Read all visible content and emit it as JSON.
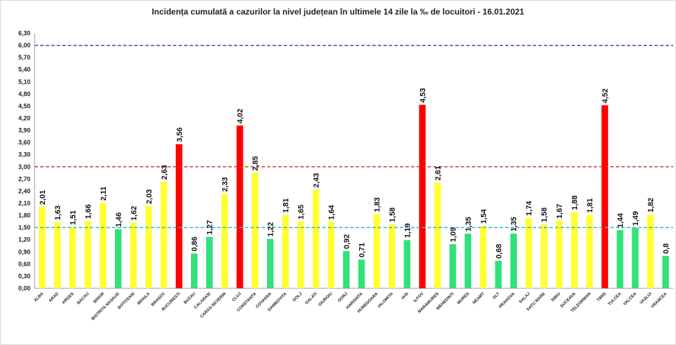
{
  "chart_data": {
    "type": "bar",
    "title": "Incidența cumulată a cazurilor la nivel județean în ultimele 14 zile   la ‰ de locuitori  - 16.01.2021",
    "xlabel": "",
    "ylabel": "",
    "ylim": [
      0,
      6.3
    ],
    "y_ticks": [
      "0,00",
      "0,30",
      "0,60",
      "0,90",
      "1,20",
      "1,50",
      "1,80",
      "2,10",
      "2,40",
      "2,70",
      "3,00",
      "3,30",
      "3,60",
      "3,90",
      "4,20",
      "4,50",
      "4,80",
      "5,10",
      "5,40",
      "5,70",
      "6,00",
      "6,30"
    ],
    "grid": false,
    "legend": "none",
    "thresholds": [
      {
        "value": 6.0,
        "color": "#7030a0"
      },
      {
        "value": 3.0,
        "color": "#e03131"
      },
      {
        "value": 1.5,
        "color": "#2fb5e0"
      }
    ],
    "categories": [
      "ALBA",
      "ARAD",
      "ARGES",
      "BACAU",
      "BIHOR",
      "BISTRITA NASAUD",
      "BOTOSANI",
      "BRAILA",
      "BRASOV",
      "BUCURESTI",
      "BUZAU",
      "CALARASI",
      "CARAS-SEVERIN",
      "CLUJ",
      "CONSTANTA",
      "COVASNA",
      "DAMBOVITA",
      "DOLJ",
      "GALATI",
      "GIURGIU",
      "GORJ",
      "HARGHITA",
      "HUNEDOARA",
      "IALOMITA",
      "IASI",
      "ILFOV",
      "MARAMURES",
      "MEHEDINTI",
      "MURES",
      "NEAMT",
      "OLT",
      "PRAHOVA",
      "SALAJ",
      "SATU MARE",
      "SIBIU",
      "SUCEAVA",
      "TELEORMAN",
      "TIMIS",
      "TULCEA",
      "VALCEA",
      "VASLUI",
      "VRANCEA"
    ],
    "values": [
      2.01,
      1.63,
      1.51,
      1.66,
      2.11,
      1.46,
      1.62,
      2.03,
      2.63,
      3.56,
      0.86,
      1.27,
      2.33,
      4.02,
      2.85,
      1.22,
      1.81,
      1.65,
      2.43,
      1.64,
      0.92,
      0.71,
      1.83,
      1.58,
      1.19,
      4.53,
      2.61,
      1.09,
      1.35,
      1.54,
      0.68,
      1.35,
      1.74,
      1.58,
      1.67,
      1.88,
      1.81,
      4.52,
      1.44,
      1.49,
      1.82,
      0.8
    ],
    "value_labels": [
      "2,01",
      "1,63",
      "1,51",
      "1,66",
      "2,11",
      "1,46",
      "1,62",
      "2,03",
      "2,63",
      "3,56",
      "0,86",
      "1,27",
      "2,33",
      "4,02",
      "2,85",
      "1,22",
      "1,81",
      "1,65",
      "2,43",
      "1,64",
      "0,92",
      "0,71",
      "1,83",
      "1,58",
      "1,19",
      "4,53",
      "2,61",
      "1,09",
      "1,35",
      "1,54",
      "0,68",
      "1,35",
      "1,74",
      "1,58",
      "1,67",
      "1,88",
      "1,81",
      "4,52",
      "1,44",
      "1,49",
      "1,82",
      "0,8"
    ],
    "colors": {
      "green": "#33e07a",
      "yellow": "#ffff33",
      "red": "#ff0000"
    },
    "bar_colors": [
      "yellow",
      "yellow",
      "yellow",
      "yellow",
      "yellow",
      "green",
      "yellow",
      "yellow",
      "yellow",
      "red",
      "green",
      "green",
      "yellow",
      "red",
      "yellow",
      "green",
      "yellow",
      "yellow",
      "yellow",
      "yellow",
      "green",
      "green",
      "yellow",
      "yellow",
      "green",
      "red",
      "yellow",
      "green",
      "green",
      "yellow",
      "green",
      "green",
      "yellow",
      "yellow",
      "yellow",
      "yellow",
      "yellow",
      "red",
      "green",
      "green",
      "yellow",
      "green"
    ]
  }
}
